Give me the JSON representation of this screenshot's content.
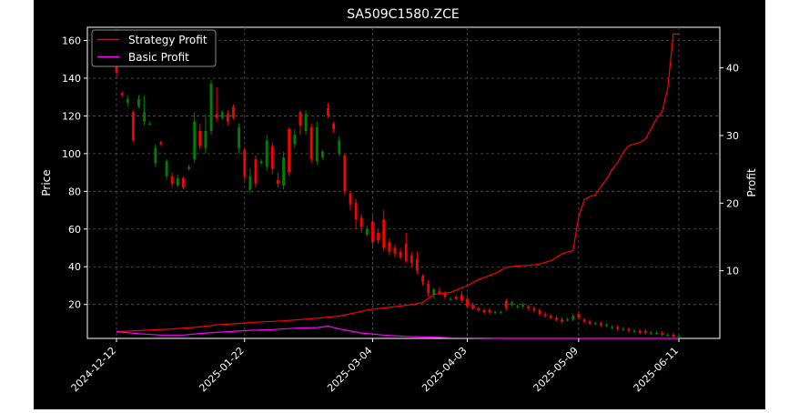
{
  "chart_data": {
    "type": "line",
    "title": "SA509C1580.ZCE",
    "ylabel_left": "Price",
    "ylabel_right": "Profit",
    "xlabel": "",
    "ylim_left": [
      2,
      167
    ],
    "ylim_right": [
      0,
      46
    ],
    "y_ticks_left": [
      20,
      40,
      60,
      80,
      100,
      120,
      140,
      160
    ],
    "y_ticks_right": [
      10,
      20,
      30,
      40
    ],
    "x_ticks": [
      "2024-12-12",
      "2025-01-22",
      "2025-03-04",
      "2025-04-03",
      "2025-05-09",
      "2025-06-11"
    ],
    "grid": true,
    "legend_position": "top-left",
    "up_color": "#008000",
    "down_color": "#ff0000",
    "candles": [
      [
        150,
        143,
        151,
        140
      ],
      [
        132,
        131,
        133,
        130
      ],
      [
        127,
        129,
        131,
        125
      ],
      [
        122,
        107,
        123,
        106
      ],
      [
        125,
        129,
        131,
        124
      ],
      [
        117,
        122,
        131,
        115
      ],
      [
        116,
        116,
        117,
        115
      ],
      [
        95,
        103,
        105,
        93
      ],
      [
        106,
        105,
        107,
        104
      ],
      [
        88,
        96,
        97,
        86
      ],
      [
        88,
        84,
        90,
        82
      ],
      [
        83,
        87,
        89,
        82
      ],
      [
        87,
        82,
        88,
        81
      ],
      [
        92,
        93,
        94,
        91
      ],
      [
        97,
        117,
        122,
        95
      ],
      [
        112,
        104,
        116,
        102
      ],
      [
        103,
        112,
        121,
        100
      ],
      [
        112,
        137,
        139,
        110
      ],
      [
        121,
        119,
        135,
        117
      ],
      [
        119,
        122,
        123,
        118
      ],
      [
        121,
        117,
        123,
        115
      ],
      [
        125,
        119,
        126,
        118
      ],
      [
        103,
        114,
        116,
        100
      ],
      [
        102,
        88,
        103,
        86
      ],
      [
        81,
        88,
        92,
        79
      ],
      [
        97,
        84,
        99,
        82
      ],
      [
        95,
        96,
        97,
        94
      ],
      [
        93,
        107,
        110,
        91
      ],
      [
        104,
        92,
        106,
        89
      ],
      [
        86,
        84,
        90,
        82
      ],
      [
        83,
        98,
        101,
        81
      ],
      [
        113,
        90,
        114,
        88
      ],
      [
        105,
        110,
        113,
        103
      ],
      [
        122,
        115,
        123,
        110
      ],
      [
        112,
        121,
        123,
        110
      ],
      [
        114,
        97,
        116,
        95
      ],
      [
        96,
        114,
        117,
        94
      ],
      [
        98,
        101,
        102,
        97
      ],
      [
        124,
        120,
        127,
        119
      ],
      [
        116,
        113,
        117,
        111
      ],
      [
        100,
        107,
        109,
        99
      ],
      [
        99,
        80,
        100,
        78
      ],
      [
        79,
        73,
        80,
        70
      ],
      [
        74,
        65,
        76,
        60
      ],
      [
        66,
        61,
        68,
        58
      ],
      [
        57,
        60,
        62,
        56
      ],
      [
        64,
        53,
        67,
        50
      ],
      [
        58,
        54,
        60,
        52
      ],
      [
        65,
        50,
        70,
        48
      ],
      [
        53,
        48,
        55,
        46
      ],
      [
        50,
        47,
        52,
        45
      ],
      [
        48,
        45,
        50,
        44
      ],
      [
        52,
        43,
        58,
        42
      ],
      [
        46,
        42,
        48,
        40
      ],
      [
        44,
        38,
        48,
        36
      ],
      [
        35,
        32,
        36,
        30
      ],
      [
        31,
        26,
        33,
        24
      ],
      [
        25,
        28,
        29,
        23
      ],
      [
        27,
        26,
        29,
        25
      ],
      [
        26,
        24,
        27,
        23
      ],
      [
        23,
        23,
        24,
        22
      ],
      [
        24,
        23,
        25,
        22
      ],
      [
        25,
        22,
        27,
        21
      ],
      [
        23,
        19,
        24,
        18
      ],
      [
        20,
        18,
        21,
        17
      ],
      [
        18,
        17,
        19,
        16
      ],
      [
        17,
        16,
        18,
        15
      ],
      [
        17,
        16,
        18,
        15
      ],
      [
        16,
        16,
        17,
        15
      ],
      [
        16,
        16,
        17,
        15
      ],
      [
        22,
        18,
        23,
        17
      ],
      [
        20,
        21,
        22,
        19
      ],
      [
        19,
        19,
        20,
        18
      ],
      [
        19,
        20,
        21,
        18
      ],
      [
        19,
        18,
        20,
        17
      ],
      [
        18,
        17,
        19,
        16
      ],
      [
        17,
        15,
        18,
        14
      ],
      [
        15,
        14,
        16,
        13
      ],
      [
        14,
        13,
        15,
        12
      ],
      [
        13,
        12,
        14,
        11
      ],
      [
        12,
        11,
        13,
        10
      ],
      [
        12,
        12,
        13,
        11
      ],
      [
        12,
        14,
        15,
        11
      ],
      [
        15,
        13,
        16,
        12
      ],
      [
        12,
        11,
        13,
        10
      ],
      [
        11,
        10,
        12,
        9
      ],
      [
        10,
        10,
        11,
        9
      ],
      [
        10,
        9,
        11,
        8
      ],
      [
        9,
        9,
        10,
        8
      ],
      [
        8,
        8,
        9,
        7
      ],
      [
        8,
        7,
        9,
        6
      ],
      [
        7,
        7,
        8,
        6
      ],
      [
        7,
        6,
        8,
        5
      ],
      [
        6,
        6,
        7,
        5
      ],
      [
        6,
        5,
        7,
        4
      ],
      [
        6,
        5,
        7,
        4
      ],
      [
        5,
        5,
        6,
        4
      ],
      [
        5,
        5,
        6,
        4
      ],
      [
        5,
        4,
        6,
        3
      ],
      [
        4,
        4,
        5,
        3
      ],
      [
        4,
        3,
        5,
        2
      ],
      [
        3,
        3,
        4,
        2
      ]
    ],
    "series": [
      {
        "name": "Strategy Profit",
        "color": "#ff0000",
        "x": [
          0,
          5,
          10,
          15,
          18,
          20,
          25,
          30,
          35,
          40,
          43,
          45,
          48,
          50,
          53,
          55,
          57,
          60,
          63,
          65,
          68,
          70,
          72,
          74,
          76,
          78,
          80,
          82,
          83,
          84,
          85,
          86,
          87,
          88,
          89,
          90,
          91,
          92,
          93,
          94,
          95,
          96,
          97,
          98,
          99,
          100,
          101
        ],
        "values": [
          1.0,
          1.2,
          1.4,
          1.7,
          2.0,
          2.1,
          2.4,
          2.6,
          2.9,
          3.3,
          3.8,
          4.2,
          4.5,
          4.7,
          5.0,
          5.3,
          6.5,
          6.8,
          7.8,
          8.7,
          9.6,
          10.5,
          10.7,
          10.8,
          11.0,
          11.5,
          12.5,
          13.0,
          18.0,
          20.5,
          21.0,
          21.2,
          22.5,
          23.5,
          25.0,
          26.0,
          27.5,
          28.5,
          28.7,
          29.0,
          29.5,
          31.0,
          32.5,
          33.5,
          37.0,
          45.0,
          45.0
        ]
      },
      {
        "name": "Basic Profit",
        "color": "#ff00ff",
        "x": [
          0,
          4,
          8,
          12,
          16,
          20,
          24,
          28,
          32,
          36,
          38,
          40,
          44,
          48,
          52,
          56,
          60,
          65,
          70,
          75,
          80,
          85,
          90,
          95,
          101
        ],
        "values": [
          1.0,
          0.7,
          0.5,
          0.5,
          0.8,
          1.0,
          1.2,
          1.3,
          1.5,
          1.6,
          1.8,
          1.4,
          0.8,
          0.5,
          0.3,
          0.2,
          0.1,
          0.05,
          0.0,
          0.0,
          0.0,
          0.0,
          0.0,
          0.0,
          0.0
        ]
      }
    ]
  }
}
